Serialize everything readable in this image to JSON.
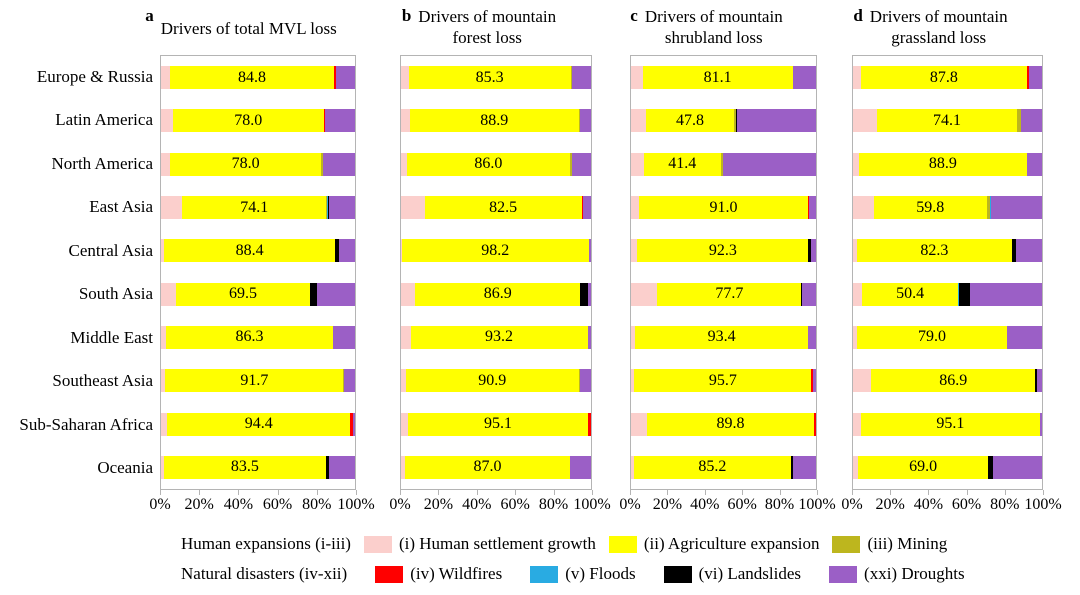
{
  "figure": {
    "regions": [
      "Europe & Russia",
      "Latin America",
      "North America",
      "East Asia",
      "Central Asia",
      "South Asia",
      "Middle East",
      "Southeast Asia",
      "Sub-Saharan Africa",
      "Oceania"
    ],
    "x_tick_labels": [
      "0%",
      "20%",
      "40%",
      "60%",
      "80%",
      "100%"
    ],
    "x_tick_positions": [
      0,
      20,
      40,
      60,
      80,
      100
    ],
    "colors": {
      "settlement": "#FBCFCC",
      "agriculture": "#FFFF00",
      "mining": "#BDB61E",
      "wildfires": "#FF0000",
      "floods": "#29ABE2",
      "landslides": "#000000",
      "droughts": "#9B5FC6"
    },
    "legend": {
      "rows": [
        {
          "group_label": "Human expansions (i-iii)",
          "items": [
            {
              "key": "settlement",
              "label": "(i) Human settlement growth"
            },
            {
              "key": "agriculture",
              "label": "(ii) Agriculture expansion"
            },
            {
              "key": "mining",
              "label": "(iii) Mining"
            }
          ]
        },
        {
          "group_label": "Natural disasters (iv-xii)",
          "items": [
            {
              "key": "wildfires",
              "label": "(iv) Wildfires"
            },
            {
              "key": "floods",
              "label": "(v) Floods"
            },
            {
              "key": "landslides",
              "label": "(vi) Landslides"
            },
            {
              "key": "droughts",
              "label": "(xxi) Droughts"
            }
          ]
        }
      ]
    }
  },
  "chart_data": [
    {
      "type": "bar",
      "panel_letter": "a",
      "title": "Drivers of total MVL loss",
      "title_lines": [
        "Drivers of total MVL loss"
      ],
      "orientation": "horizontal",
      "stacked": true,
      "xlim": [
        0,
        100
      ],
      "x_tick_labels": [
        "0%",
        "20%",
        "40%",
        "60%",
        "80%",
        "100%"
      ],
      "categories": [
        "Europe & Russia",
        "Latin America",
        "North America",
        "East Asia",
        "Central Asia",
        "South Asia",
        "Middle East",
        "Southeast Asia",
        "Sub-Saharan Africa",
        "Oceania"
      ],
      "bar_labels": [
        "84.8",
        "78.0",
        "78.0",
        "74.1",
        "88.4",
        "69.5",
        "86.3",
        "91.7",
        "94.4",
        "83.5"
      ],
      "series": [
        {
          "key": "settlement",
          "name": "(i) Human settlement growth",
          "values": [
            4.5,
            6.0,
            4.6,
            11.0,
            1.5,
            7.5,
            2.5,
            2.3,
            3.2,
            1.5
          ]
        },
        {
          "key": "agriculture",
          "name": "(ii) Agriculture expansion",
          "values": [
            84.8,
            78.0,
            78.0,
            74.1,
            88.4,
            69.5,
            86.3,
            91.7,
            94.4,
            83.5
          ]
        },
        {
          "key": "mining",
          "name": "(iii) Mining",
          "values": [
            0,
            0,
            1.0,
            0.5,
            0,
            0,
            0,
            0.5,
            0,
            0
          ]
        },
        {
          "key": "wildfires",
          "name": "(iv) Wildfires",
          "values": [
            0.8,
            0.7,
            0,
            0,
            0,
            0,
            0,
            0,
            1.4,
            0
          ]
        },
        {
          "key": "floods",
          "name": "(v) Floods",
          "values": [
            0,
            0,
            0,
            0.5,
            0,
            0,
            0,
            0,
            0,
            0
          ]
        },
        {
          "key": "landslides",
          "name": "(vi) Landslides",
          "values": [
            0,
            0,
            0,
            0.4,
            2.0,
            3.2,
            0,
            0,
            0,
            1.5
          ]
        },
        {
          "key": "droughts",
          "name": "(xxi) Droughts",
          "values": [
            9.9,
            15.3,
            16.4,
            13.5,
            8.1,
            19.8,
            11.2,
            5.5,
            1.0,
            13.5
          ]
        }
      ]
    },
    {
      "type": "bar",
      "panel_letter": "b",
      "title": "Drivers of mountain forest loss",
      "title_lines": [
        "Drivers of mountain",
        "forest loss"
      ],
      "orientation": "horizontal",
      "stacked": true,
      "xlim": [
        0,
        100
      ],
      "x_tick_labels": [
        "0%",
        "20%",
        "40%",
        "60%",
        "80%",
        "100%"
      ],
      "categories": [
        "Europe & Russia",
        "Latin America",
        "North America",
        "East Asia",
        "Central Asia",
        "South Asia",
        "Middle East",
        "Southeast Asia",
        "Sub-Saharan Africa",
        "Oceania"
      ],
      "bar_labels": [
        "85.3",
        "88.9",
        "86.0",
        "82.5",
        "98.2",
        "86.9",
        "93.2",
        "90.9",
        "95.1",
        "87.0"
      ],
      "series": [
        {
          "key": "settlement",
          "name": "(i) Human settlement growth",
          "values": [
            4.0,
            4.6,
            3.0,
            12.5,
            0.5,
            7.5,
            5.0,
            2.6,
            3.5,
            2.0
          ]
        },
        {
          "key": "agriculture",
          "name": "(ii) Agriculture expansion",
          "values": [
            85.3,
            88.9,
            86.0,
            82.5,
            98.2,
            86.9,
            93.2,
            90.9,
            95.1,
            87.0
          ]
        },
        {
          "key": "mining",
          "name": "(iii) Mining",
          "values": [
            0.7,
            0.5,
            1.0,
            0,
            0,
            0,
            0,
            0.7,
            0,
            0
          ]
        },
        {
          "key": "wildfires",
          "name": "(iv) Wildfires",
          "values": [
            0,
            0,
            0,
            0.8,
            0,
            0,
            0,
            0,
            1.4,
            0
          ]
        },
        {
          "key": "floods",
          "name": "(v) Floods",
          "values": [
            0,
            0,
            0,
            0,
            0,
            0,
            0,
            0,
            0,
            0
          ]
        },
        {
          "key": "landslides",
          "name": "(vi) Landslides",
          "values": [
            0,
            0,
            0,
            0,
            0,
            3.8,
            0,
            0,
            0,
            0
          ]
        },
        {
          "key": "droughts",
          "name": "(xxi) Droughts",
          "values": [
            10.0,
            6.0,
            10.0,
            4.2,
            1.3,
            1.8,
            1.8,
            5.8,
            0,
            11.0
          ]
        }
      ]
    },
    {
      "type": "bar",
      "panel_letter": "c",
      "title": "Drivers of mountain shrubland loss",
      "title_lines": [
        "Drivers of mountain",
        "shrubland loss"
      ],
      "orientation": "horizontal",
      "stacked": true,
      "xlim": [
        0,
        100
      ],
      "x_tick_labels": [
        "0%",
        "20%",
        "40%",
        "60%",
        "80%",
        "100%"
      ],
      "categories": [
        "Europe & Russia",
        "Latin America",
        "North America",
        "East Asia",
        "Central Asia",
        "South Asia",
        "Middle East",
        "Southeast Asia",
        "Sub-Saharan Africa",
        "Oceania"
      ],
      "bar_labels": [
        "81.1",
        "47.8",
        "41.4",
        "91.0",
        "92.3",
        "77.7",
        "93.4",
        "95.7",
        "89.8",
        "85.2"
      ],
      "series": [
        {
          "key": "settlement",
          "name": "(i) Human settlement growth",
          "values": [
            6.3,
            8.0,
            7.0,
            4.5,
            3.5,
            14.3,
            2.3,
            1.8,
            8.9,
            1.4
          ]
        },
        {
          "key": "agriculture",
          "name": "(ii) Agriculture expansion",
          "values": [
            81.1,
            47.8,
            41.4,
            91.0,
            92.3,
            77.7,
            93.4,
            95.7,
            89.8,
            85.2
          ]
        },
        {
          "key": "mining",
          "name": "(iii) Mining",
          "values": [
            0,
            1.2,
            1.3,
            0,
            0,
            0,
            0,
            0,
            0,
            0
          ]
        },
        {
          "key": "wildfires",
          "name": "(iv) Wildfires",
          "values": [
            0,
            0,
            0,
            0.6,
            0,
            0,
            0,
            0.9,
            1.3,
            0
          ]
        },
        {
          "key": "floods",
          "name": "(v) Floods",
          "values": [
            0,
            0,
            0,
            0,
            0,
            0,
            0,
            0,
            0,
            0
          ]
        },
        {
          "key": "landslides",
          "name": "(vi) Landslides",
          "values": [
            0,
            0.5,
            0,
            0,
            1.3,
            0.4,
            0,
            0,
            0,
            1.2
          ]
        },
        {
          "key": "droughts",
          "name": "(xxi) Droughts",
          "values": [
            12.6,
            42.5,
            50.3,
            3.9,
            2.9,
            7.6,
            4.3,
            1.6,
            0,
            12.2
          ]
        }
      ]
    },
    {
      "type": "bar",
      "panel_letter": "d",
      "title": "Drivers of mountain grassland loss",
      "title_lines": [
        "Drivers of mountain",
        "grassland loss"
      ],
      "orientation": "horizontal",
      "stacked": true,
      "xlim": [
        0,
        100
      ],
      "x_tick_labels": [
        "0%",
        "20%",
        "40%",
        "60%",
        "80%",
        "100%"
      ],
      "categories": [
        "Europe & Russia",
        "Latin America",
        "North America",
        "East Asia",
        "Central Asia",
        "South Asia",
        "Middle East",
        "Southeast Asia",
        "Sub-Saharan Africa",
        "Oceania"
      ],
      "bar_labels": [
        "87.8",
        "74.1",
        "88.9",
        "59.8",
        "82.3",
        "50.4",
        "79.0",
        "86.9",
        "95.1",
        "69.0"
      ],
      "series": [
        {
          "key": "settlement",
          "name": "(i) Human settlement growth",
          "values": [
            4.2,
            12.7,
            3.1,
            11.0,
            1.9,
            5.0,
            2.3,
            9.6,
            4.0,
            2.6
          ]
        },
        {
          "key": "agriculture",
          "name": "(ii) Agriculture expansion",
          "values": [
            87.8,
            74.1,
            88.9,
            59.8,
            82.3,
            50.4,
            79.0,
            86.9,
            95.1,
            69.0
          ]
        },
        {
          "key": "mining",
          "name": "(iii) Mining",
          "values": [
            0,
            2.3,
            0,
            1.5,
            0,
            0,
            0,
            0,
            0,
            0
          ]
        },
        {
          "key": "wildfires",
          "name": "(iv) Wildfires",
          "values": [
            0.9,
            0,
            0,
            0,
            0,
            0,
            0,
            0,
            0,
            0
          ]
        },
        {
          "key": "floods",
          "name": "(v) Floods",
          "values": [
            0,
            0,
            0,
            0.6,
            0,
            0.8,
            0,
            0,
            0,
            0
          ]
        },
        {
          "key": "landslides",
          "name": "(vi) Landslides",
          "values": [
            0,
            0,
            0,
            0,
            2.3,
            5.8,
            0,
            1.0,
            0,
            2.3
          ]
        },
        {
          "key": "droughts",
          "name": "(xxi) Droughts",
          "values": [
            7.1,
            10.9,
            8.0,
            27.1,
            13.5,
            38.0,
            18.7,
            2.5,
            0.9,
            26.1
          ]
        }
      ]
    }
  ]
}
